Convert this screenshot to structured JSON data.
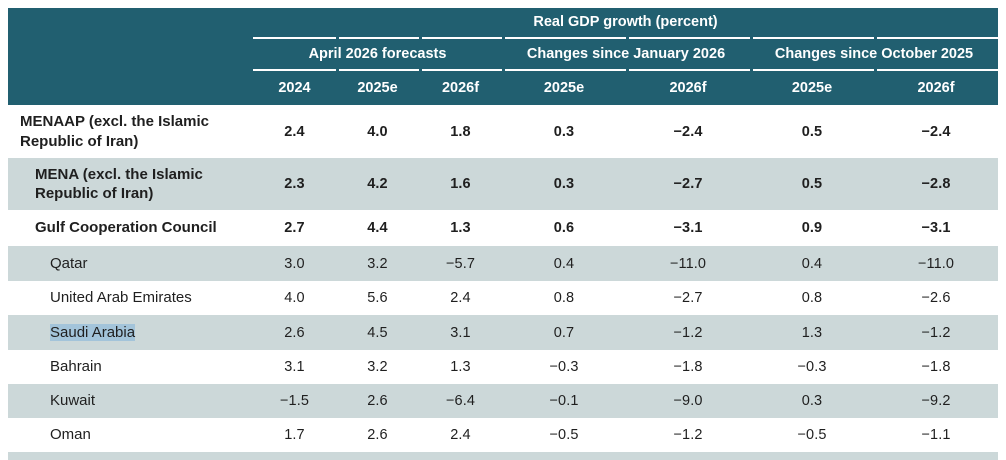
{
  "table": {
    "title": "Real GDP growth (percent)",
    "col_groups": [
      {
        "label": "April 2026 forecasts",
        "cols": [
          "2024",
          "2025e",
          "2026f"
        ]
      },
      {
        "label": "Changes since January 2026",
        "cols": [
          "2025e",
          "2026f"
        ]
      },
      {
        "label": "Changes since October 2025",
        "cols": [
          "2025e",
          "2026f"
        ]
      }
    ],
    "rows": [
      {
        "label": "MENAAP (excl. the Islamic Republic of Iran)",
        "bold": true,
        "indent": 0,
        "shaded": false,
        "highlighted": false,
        "values": [
          "2.4",
          "4.0",
          "1.8",
          "0.3",
          "−2.4",
          "0.5",
          "−2.4"
        ]
      },
      {
        "label": "MENA (excl. the Islamic Republic of Iran)",
        "bold": true,
        "indent": 1,
        "shaded": true,
        "highlighted": false,
        "values": [
          "2.3",
          "4.2",
          "1.6",
          "0.3",
          "−2.7",
          "0.5",
          "−2.8"
        ]
      },
      {
        "label": "Gulf Cooperation Council",
        "bold": true,
        "indent": 1,
        "shaded": false,
        "highlighted": false,
        "values": [
          "2.7",
          "4.4",
          "1.3",
          "0.6",
          "−3.1",
          "0.9",
          "−3.1"
        ]
      },
      {
        "label": "Qatar",
        "bold": false,
        "indent": 2,
        "shaded": true,
        "highlighted": false,
        "values": [
          "3.0",
          "3.2",
          "−5.7",
          "0.4",
          "−11.0",
          "0.4",
          "−11.0"
        ]
      },
      {
        "label": "United Arab Emirates",
        "bold": false,
        "indent": 2,
        "shaded": false,
        "highlighted": false,
        "values": [
          "4.0",
          "5.6",
          "2.4",
          "0.8",
          "−2.7",
          "0.8",
          "−2.6"
        ]
      },
      {
        "label": "Saudi Arabia",
        "bold": false,
        "indent": 2,
        "shaded": true,
        "highlighted": true,
        "values": [
          "2.6",
          "4.5",
          "3.1",
          "0.7",
          "−1.2",
          "1.3",
          "−1.2"
        ]
      },
      {
        "label": "Bahrain",
        "bold": false,
        "indent": 2,
        "shaded": false,
        "highlighted": false,
        "values": [
          "3.1",
          "3.2",
          "1.3",
          "−0.3",
          "−1.8",
          "−0.3",
          "−1.8"
        ]
      },
      {
        "label": "Kuwait",
        "bold": false,
        "indent": 2,
        "shaded": true,
        "highlighted": false,
        "values": [
          "−1.5",
          "2.6",
          "−6.4",
          "−0.1",
          "−9.0",
          "0.3",
          "−9.2"
        ]
      },
      {
        "label": "Oman",
        "bold": false,
        "indent": 2,
        "shaded": false,
        "highlighted": false,
        "values": [
          "1.7",
          "2.6",
          "2.4",
          "−0.5",
          "−1.2",
          "−0.5",
          "−1.1"
        ]
      }
    ],
    "colors": {
      "header_bg": "#215f70",
      "shaded_row_bg": "#ccd8d9",
      "selection_highlight": "#a3c4da",
      "header_text": "#ffffff",
      "body_text": "#1f1f1f"
    }
  }
}
